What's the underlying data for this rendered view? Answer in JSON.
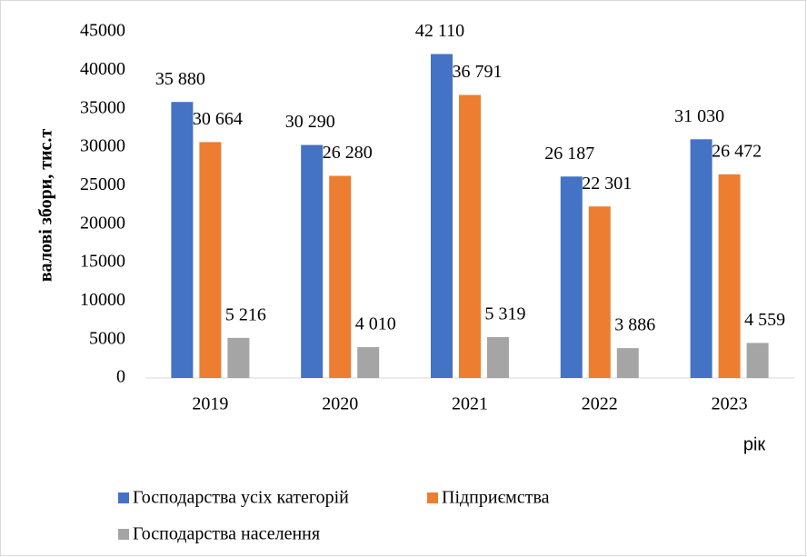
{
  "chart_data": {
    "type": "bar",
    "categories": [
      "2019",
      "2020",
      "2021",
      "2022",
      "2023"
    ],
    "series": [
      {
        "name": "Господарства усіх категорій",
        "color": "#4472c4",
        "values": [
          35880,
          30290,
          42110,
          26187,
          31030
        ],
        "value_labels": [
          "35 880",
          "30 290",
          "42 110",
          "26 187",
          "31 030"
        ]
      },
      {
        "name": "Підприємства",
        "color": "#ed7d31",
        "values": [
          30664,
          26280,
          36791,
          22301,
          26472
        ],
        "value_labels": [
          "30 664",
          "26 280",
          "36 791",
          "22 301",
          "26 472"
        ]
      },
      {
        "name": "Господарства населення",
        "color": "#a5a5a5",
        "values": [
          5216,
          4010,
          5319,
          3886,
          4559
        ],
        "value_labels": [
          "5 216",
          "4 010",
          "5 319",
          "3 886",
          "4 559"
        ]
      }
    ],
    "ylabel": "валові збори, тис.т",
    "xlabel": "рік",
    "ylim": [
      0,
      45000
    ],
    "yticks": [
      0,
      5000,
      10000,
      15000,
      20000,
      25000,
      30000,
      35000,
      40000,
      45000
    ],
    "grid": false,
    "legend": "bottom"
  }
}
